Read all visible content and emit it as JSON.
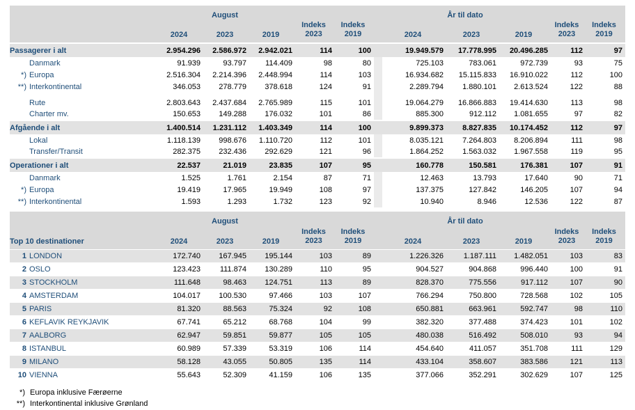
{
  "palette": {
    "header-bg": "#d9d9d9",
    "band-bg": "#e2e2e2",
    "strip-bg": "#ebebeb",
    "navy": "#1f4e79",
    "text": "#000000"
  },
  "headers": {
    "august": "August",
    "ytd": "År til dato",
    "y2024": "2024",
    "y2023": "2023",
    "y2019": "2019",
    "indeks": "Indeks"
  },
  "table1": {
    "title": "",
    "rows": [
      {
        "label": "Passagerer i alt",
        "style": "total",
        "prefix": "",
        "values": [
          "2.954.296",
          "2.586.972",
          "2.942.021",
          "114",
          "100",
          "19.949.579",
          "17.778.995",
          "20.496.285",
          "112",
          "97"
        ]
      },
      {
        "label": "Danmark",
        "style": "sub",
        "prefix": "",
        "values": [
          "91.939",
          "93.797",
          "114.409",
          "98",
          "80",
          "725.103",
          "783.061",
          "972.739",
          "93",
          "75"
        ]
      },
      {
        "label": "Europa",
        "style": "sub",
        "prefix": "*)",
        "values": [
          "2.516.304",
          "2.214.396",
          "2.448.994",
          "114",
          "103",
          "16.934.682",
          "15.115.833",
          "16.910.022",
          "112",
          "100"
        ]
      },
      {
        "label": "Interkontinental",
        "style": "sub",
        "prefix": "**)",
        "values": [
          "346.053",
          "278.779",
          "378.618",
          "124",
          "91",
          "2.289.794",
          "1.880.101",
          "2.613.524",
          "122",
          "88"
        ]
      },
      {
        "label": "Rute",
        "style": "sub",
        "prefix": "",
        "gap": true,
        "values": [
          "2.803.643",
          "2.437.684",
          "2.765.989",
          "115",
          "101",
          "19.064.279",
          "16.866.883",
          "19.414.630",
          "113",
          "98"
        ]
      },
      {
        "label": "Charter mv.",
        "style": "sub",
        "prefix": "",
        "values": [
          "150.653",
          "149.288",
          "176.032",
          "101",
          "86",
          "885.300",
          "912.112",
          "1.081.655",
          "97",
          "82"
        ]
      },
      {
        "label": "Afgående i alt",
        "style": "total",
        "prefix": "",
        "values": [
          "1.400.514",
          "1.231.112",
          "1.403.349",
          "114",
          "100",
          "9.899.373",
          "8.827.835",
          "10.174.452",
          "112",
          "97"
        ]
      },
      {
        "label": "Lokal",
        "style": "sub",
        "prefix": "",
        "values": [
          "1.118.139",
          "998.676",
          "1.110.720",
          "112",
          "101",
          "8.035.121",
          "7.264.803",
          "8.206.894",
          "111",
          "98"
        ]
      },
      {
        "label": "Transfer/Transit",
        "style": "sub",
        "prefix": "",
        "values": [
          "282.375",
          "232.436",
          "292.629",
          "121",
          "96",
          "1.864.252",
          "1.563.032",
          "1.967.558",
          "119",
          "95"
        ]
      },
      {
        "label": "Operationer i alt",
        "style": "total",
        "prefix": "",
        "values": [
          "22.537",
          "21.019",
          "23.835",
          "107",
          "95",
          "160.778",
          "150.581",
          "176.381",
          "107",
          "91"
        ]
      },
      {
        "label": "Danmark",
        "style": "sub",
        "prefix": "",
        "values": [
          "1.525",
          "1.761",
          "2.154",
          "87",
          "71",
          "12.463",
          "13.793",
          "17.640",
          "90",
          "71"
        ]
      },
      {
        "label": "Europa",
        "style": "sub",
        "prefix": "*)",
        "values": [
          "19.419",
          "17.965",
          "19.949",
          "108",
          "97",
          "137.375",
          "127.842",
          "146.205",
          "107",
          "94"
        ]
      },
      {
        "label": "Interkontinental",
        "style": "sub",
        "prefix": "**)",
        "values": [
          "1.593",
          "1.293",
          "1.732",
          "123",
          "92",
          "10.940",
          "8.946",
          "12.536",
          "122",
          "87"
        ]
      }
    ]
  },
  "table2": {
    "title": "Top 10 destinationer",
    "rows": [
      {
        "label": "LONDON",
        "style": "dest",
        "prefix": "1",
        "values": [
          "172.740",
          "167.945",
          "195.144",
          "103",
          "89",
          "1.226.326",
          "1.187.111",
          "1.482.051",
          "103",
          "83"
        ]
      },
      {
        "label": "OSLO",
        "style": "dest",
        "prefix": "2",
        "values": [
          "123.423",
          "111.874",
          "130.289",
          "110",
          "95",
          "904.527",
          "904.868",
          "996.440",
          "100",
          "91"
        ]
      },
      {
        "label": "STOCKHOLM",
        "style": "dest",
        "prefix": "3",
        "values": [
          "111.648",
          "98.463",
          "124.751",
          "113",
          "89",
          "828.370",
          "775.556",
          "917.112",
          "107",
          "90"
        ]
      },
      {
        "label": "AMSTERDAM",
        "style": "dest",
        "prefix": "4",
        "values": [
          "104.017",
          "100.530",
          "97.466",
          "103",
          "107",
          "766.294",
          "750.800",
          "728.568",
          "102",
          "105"
        ]
      },
      {
        "label": "PARIS",
        "style": "dest",
        "prefix": "5",
        "values": [
          "81.320",
          "88.563",
          "75.324",
          "92",
          "108",
          "650.881",
          "663.961",
          "592.747",
          "98",
          "110"
        ]
      },
      {
        "label": "KEFLAVIK REYKJAVIK",
        "style": "dest",
        "prefix": "6",
        "values": [
          "67.741",
          "65.212",
          "68.768",
          "104",
          "99",
          "382.320",
          "377.488",
          "374.423",
          "101",
          "102"
        ]
      },
      {
        "label": "AALBORG",
        "style": "dest",
        "prefix": "7",
        "values": [
          "62.947",
          "59.851",
          "59.877",
          "105",
          "105",
          "480.038",
          "516.492",
          "508.010",
          "93",
          "94"
        ]
      },
      {
        "label": "ISTANBUL",
        "style": "dest",
        "prefix": "8",
        "values": [
          "60.989",
          "57.339",
          "53.319",
          "106",
          "114",
          "454.640",
          "411.057",
          "351.708",
          "111",
          "129"
        ]
      },
      {
        "label": "MILANO",
        "style": "dest",
        "prefix": "9",
        "values": [
          "58.128",
          "43.055",
          "50.805",
          "135",
          "114",
          "433.104",
          "358.607",
          "383.586",
          "121",
          "113"
        ]
      },
      {
        "label": "VIENNA",
        "style": "dest",
        "prefix": "10",
        "values": [
          "55.643",
          "52.309",
          "41.159",
          "106",
          "135",
          "377.066",
          "352.291",
          "302.629",
          "107",
          "125"
        ]
      }
    ]
  },
  "footnotes": [
    {
      "prefix": "*)",
      "text": "Europa inklusive Færøerne"
    },
    {
      "prefix": "**)",
      "text": "Interkontinental inklusive Grønland"
    }
  ]
}
